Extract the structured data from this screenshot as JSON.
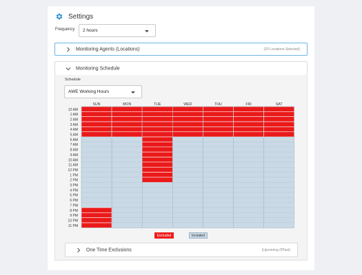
{
  "header": {
    "title": "Settings",
    "icon": "gear-icon",
    "icon_color": "#1a8fd1"
  },
  "frequency": {
    "label": "Frequency",
    "value": "2 hours"
  },
  "agents_section": {
    "label": "Monitoring Agents (Locations)",
    "summary": "(20 Locations Selected)"
  },
  "schedule_section": {
    "label": "Monitoring Schedule",
    "schedule_label": "Schedule",
    "schedule_value": "AWE Working Hours",
    "days": [
      "SUN",
      "MON",
      "TUE",
      "WED",
      "THU",
      "FRI",
      "SAT"
    ],
    "hours": [
      "12 AM",
      "1 AM",
      "2 AM",
      "3 AM",
      "4 AM",
      "5 AM",
      "6 AM",
      "7 AM",
      "8 AM",
      "9 AM",
      "10 AM",
      "11 AM",
      "12 PM",
      "1 PM",
      "2 PM",
      "3 PM",
      "4 PM",
      "5 PM",
      "6 PM",
      "7 PM",
      "8 PM",
      "9 PM",
      "10 PM",
      "11 PM"
    ],
    "excluded_hours": {
      "SUN": [
        0,
        1,
        2,
        3,
        4,
        5,
        20,
        21,
        22,
        23
      ],
      "MON": [
        0,
        1,
        2,
        3,
        4,
        5
      ],
      "TUE": [
        0,
        1,
        2,
        3,
        4,
        5,
        6,
        7,
        8,
        9,
        10,
        11,
        12,
        13,
        14
      ],
      "WED": [
        0,
        1,
        2,
        3,
        4,
        5
      ],
      "THU": [
        0,
        1,
        2,
        3,
        4,
        5
      ],
      "FRI": [
        0,
        1,
        2,
        3,
        4,
        5
      ],
      "SAT": [
        0,
        1,
        2,
        3,
        4,
        5
      ]
    },
    "legend": {
      "excluded": "Excluded",
      "included": "Included"
    },
    "colors": {
      "excluded": "#ef1b1b",
      "included": "#c9d9e5"
    }
  },
  "exclusions_section": {
    "label": "One Time Exclusions",
    "summary": "(Upcoming /2Past)"
  }
}
